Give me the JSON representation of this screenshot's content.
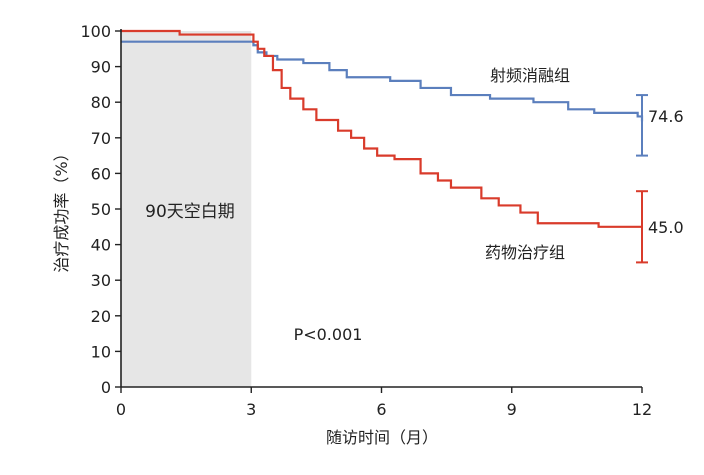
{
  "chart_data": {
    "type": "line",
    "title": "",
    "xlabel": "随访时间（月）",
    "ylabel": "治疗成功率（%）",
    "xlim": [
      0,
      12
    ],
    "ylim": [
      0,
      100
    ],
    "x_ticks": [
      0,
      3,
      6,
      9,
      12
    ],
    "y_ticks": [
      0,
      10,
      20,
      30,
      40,
      50,
      60,
      70,
      80,
      90,
      100
    ],
    "blanking_period": {
      "label": "90天空白期",
      "x_start": 0,
      "x_end": 3
    },
    "annotation": "P<0.001",
    "series": [
      {
        "name": "射频消融组",
        "color": "#5b7fbd",
        "final_label": "74.6",
        "ci": [
          65,
          82
        ],
        "points": [
          [
            0,
            97
          ],
          [
            3,
            97
          ],
          [
            3.05,
            96
          ],
          [
            3.15,
            94
          ],
          [
            3.35,
            93
          ],
          [
            3.6,
            92
          ],
          [
            4.2,
            91
          ],
          [
            4.8,
            89
          ],
          [
            5.2,
            87
          ],
          [
            6.2,
            86
          ],
          [
            6.9,
            84
          ],
          [
            7.6,
            82
          ],
          [
            8.5,
            81
          ],
          [
            9.5,
            80
          ],
          [
            10.3,
            78
          ],
          [
            10.9,
            77
          ],
          [
            11.9,
            76
          ],
          [
            12,
            74.6
          ]
        ]
      },
      {
        "name": "药物治疗组",
        "color": "#d93b2b",
        "final_label": "45.0",
        "ci": [
          35,
          55
        ],
        "points": [
          [
            0,
            100
          ],
          [
            1.35,
            99
          ],
          [
            3,
            99
          ],
          [
            3.05,
            97
          ],
          [
            3.15,
            95
          ],
          [
            3.3,
            93
          ],
          [
            3.5,
            89
          ],
          [
            3.7,
            84
          ],
          [
            3.9,
            81
          ],
          [
            4.2,
            78
          ],
          [
            4.5,
            75
          ],
          [
            5.0,
            72
          ],
          [
            5.3,
            70
          ],
          [
            5.6,
            67
          ],
          [
            5.9,
            65
          ],
          [
            6.3,
            64
          ],
          [
            6.9,
            60
          ],
          [
            7.3,
            58
          ],
          [
            7.6,
            56
          ],
          [
            8.3,
            53
          ],
          [
            8.7,
            51
          ],
          [
            9.2,
            49
          ],
          [
            9.6,
            46
          ],
          [
            11,
            45
          ],
          [
            12,
            45
          ]
        ]
      }
    ]
  }
}
